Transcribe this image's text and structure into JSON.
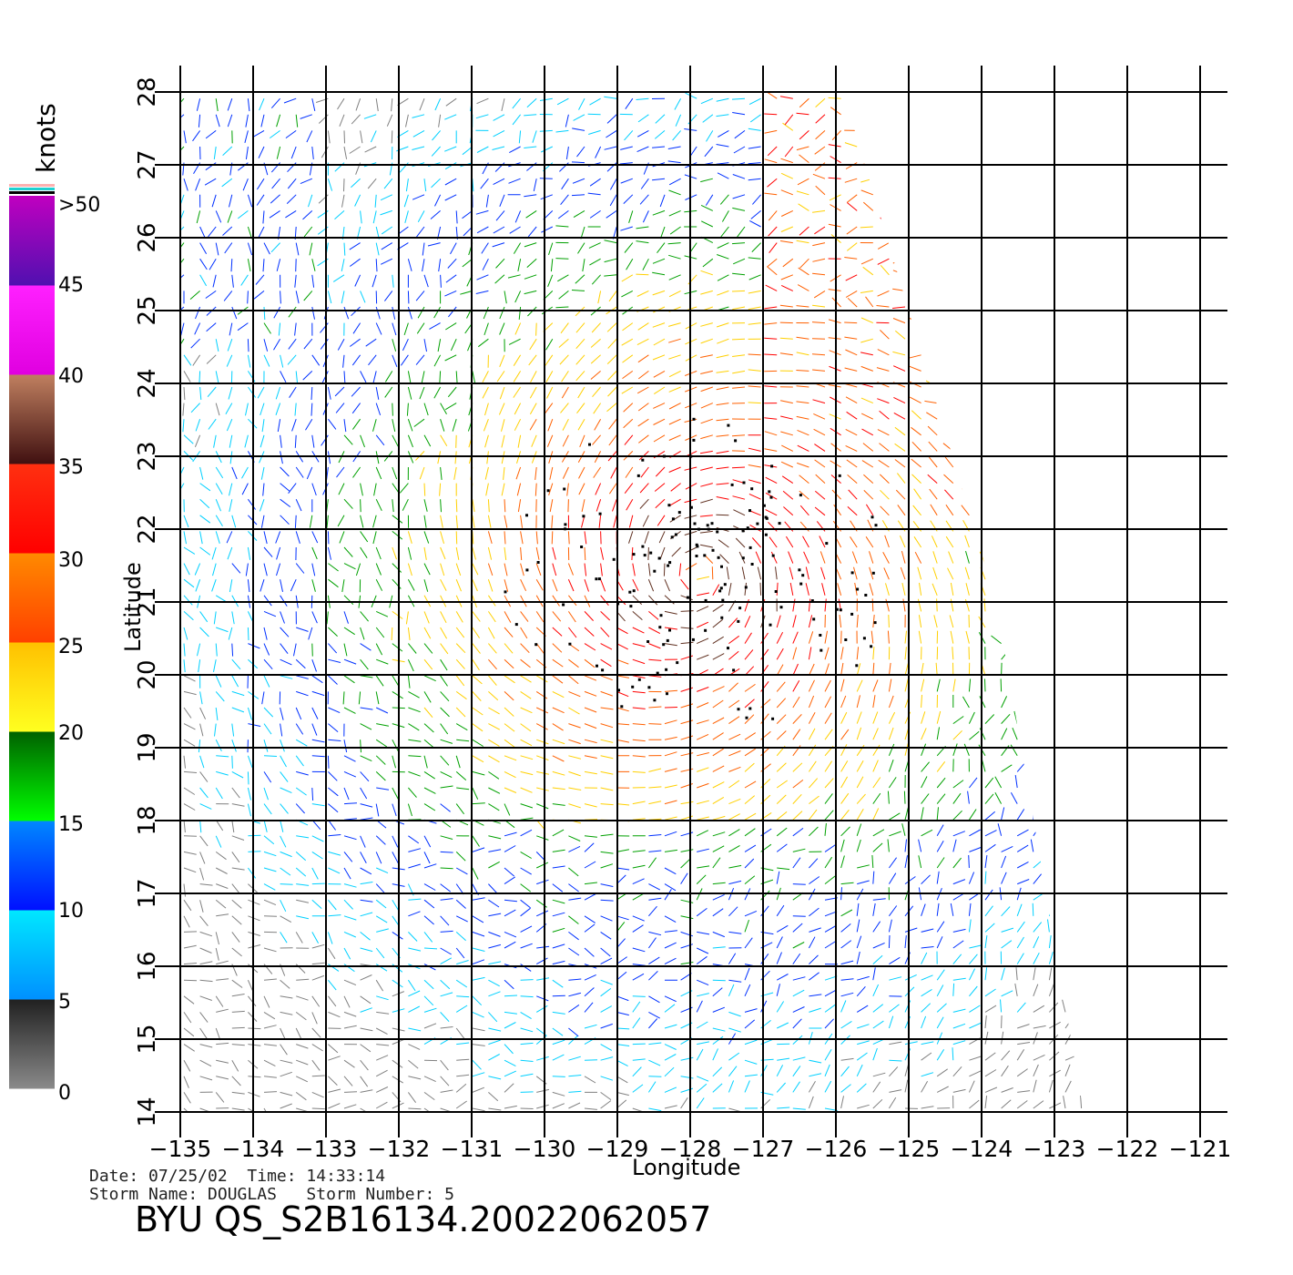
{
  "axes": {
    "xlabel": "Longitude",
    "ylabel": "Latitude",
    "xlim": [
      -135,
      -121
    ],
    "ylim": [
      14,
      28
    ],
    "xticks": [
      "−135",
      "−134",
      "−133",
      "−132",
      "−131",
      "−130",
      "−129",
      "−128",
      "−127",
      "−126",
      "−125",
      "−124",
      "−123",
      "−122",
      "−121"
    ],
    "yticks": [
      "14",
      "15",
      "16",
      "17",
      "18",
      "19",
      "20",
      "21",
      "22",
      "23",
      "24",
      "25",
      "26",
      "27",
      "28"
    ]
  },
  "colorbar": {
    "unit": "knots",
    "labels": [
      "0",
      "5",
      "10",
      "15",
      "20",
      "25",
      "30",
      "35",
      "40",
      "45",
      ">50"
    ],
    "bands": [
      {
        "from": 0,
        "to": 5,
        "top": "#202020",
        "bottom": "#8a8a8a"
      },
      {
        "from": 5,
        "to": 10,
        "top": "#00e8ff",
        "bottom": "#0090ff"
      },
      {
        "from": 10,
        "to": 15,
        "top": "#0088ff",
        "bottom": "#0010ff"
      },
      {
        "from": 15,
        "to": 20,
        "top": "#006000",
        "bottom": "#00ff00"
      },
      {
        "from": 20,
        "to": 25,
        "top": "#ffc000",
        "bottom": "#ffff20"
      },
      {
        "from": 25,
        "to": 30,
        "top": "#ff8a00",
        "bottom": "#ff4000"
      },
      {
        "from": 30,
        "to": 35,
        "top": "#ff3010",
        "bottom": "#ff0000"
      },
      {
        "from": 35,
        "to": 40,
        "top": "#c08060",
        "bottom": "#401010"
      },
      {
        "from": 40,
        "to": 45,
        "top": "#ff20ff",
        "bottom": "#e000e0"
      },
      {
        "from": 45,
        "to": 50,
        "top": "#c000c0",
        "bottom": "#5010b0"
      }
    ],
    "colors": [
      "#808080",
      "#00d0ff",
      "#0030ff",
      "#00a000",
      "#ffd000",
      "#ff6000",
      "#ff0000",
      "#603020",
      "#ff00ff",
      "#6000c0"
    ]
  },
  "info": {
    "date_line": "Date: 07/25/02  Time: 14:33:14",
    "storm_line": "Storm Name: DOUGLAS   Storm Number: 5",
    "product": "BYU QS_S2B16134.20022062057"
  },
  "storm": {
    "center_lon": -127.9,
    "center_lat": 21.4
  },
  "swath": [
    [
      -135,
      14
    ],
    [
      -135,
      28
    ],
    [
      -125.9,
      28
    ],
    [
      -123.8,
      21
    ],
    [
      -122.6,
      14
    ]
  ]
}
